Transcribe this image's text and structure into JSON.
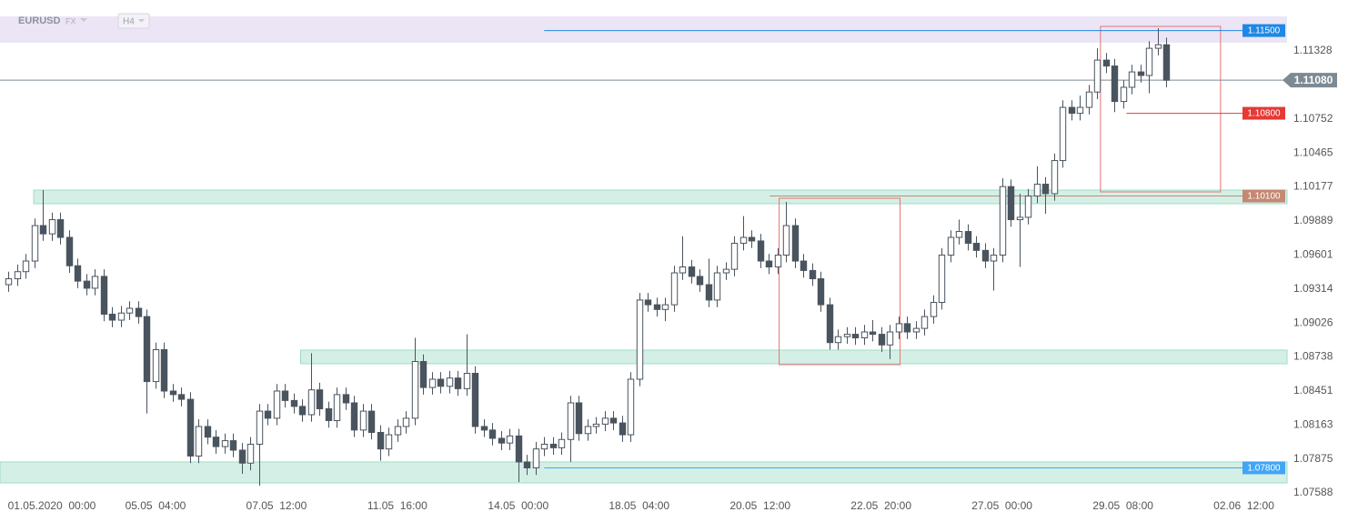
{
  "header": {
    "symbol": "EURUSD",
    "market": "FX",
    "timeframe": "H4"
  },
  "chart_data": {
    "type": "candlestick",
    "up_color": "#ffffff",
    "down_color": "#4a545e",
    "wick_color": "#4a545e",
    "open": [
      1.0935,
      1.094,
      1.0946,
      1.0955,
      1.0985,
      1.0978,
      1.099,
      1.0975,
      1.0951,
      1.0938,
      1.0932,
      1.0942,
      1.091,
      1.0905,
      1.0911,
      1.0915,
      1.0908,
      1.0853,
      1.088,
      1.0845,
      1.0842,
      1.0838,
      1.079,
      1.0815,
      1.0806,
      1.0798,
      1.0803,
      1.0795,
      1.0784,
      1.08,
      1.0828,
      1.0822,
      1.0845,
      1.0837,
      1.0832,
      1.0825,
      1.0846,
      1.083,
      1.082,
      1.0842,
      1.0835,
      1.0812,
      1.0828,
      1.081,
      1.0796,
      1.0808,
      1.0815,
      1.0822,
      1.087,
      1.0848,
      1.0855,
      1.0849,
      1.0856,
      1.0847,
      1.086,
      1.0815,
      1.0812,
      1.0805,
      1.0801,
      1.0807,
      1.0785,
      1.078,
      1.0796,
      1.08,
      1.0797,
      1.0804,
      1.0835,
      1.0809,
      1.0815,
      1.0817,
      1.0822,
      1.0818,
      1.0808,
      1.0855,
      1.0922,
      1.0918,
      1.0914,
      1.0918,
      1.0945,
      1.095,
      1.0942,
      1.0935,
      1.0922,
      1.0945,
      1.0948,
      1.097,
      1.0975,
      1.0972,
      1.0955,
      1.095,
      1.096,
      1.0985,
      1.0955,
      1.0947,
      1.094,
      1.0918,
      1.0886,
      1.0891,
      1.0893,
      1.089,
      1.0895,
      1.0893,
      1.0884,
      1.0895,
      1.0902,
      1.0895,
      1.0898,
      1.0908,
      1.092,
      1.096,
      1.0975,
      1.098,
      1.097,
      1.0964,
      1.0955,
      1.096,
      1.1018,
      1.099,
      1.0992,
      1.101,
      1.102,
      1.1012,
      1.104,
      1.1085,
      1.108,
      1.1085,
      1.1098,
      1.1125,
      1.112,
      1.109,
      1.1102,
      1.1115,
      1.1112,
      1.1135,
      1.1138
    ],
    "high": [
      1.0946,
      1.0952,
      1.0961,
      1.0991,
      1.1015,
      1.0996,
      1.0996,
      1.0981,
      1.0957,
      1.0944,
      1.0948,
      1.0948,
      1.0916,
      1.0917,
      1.0921,
      1.0921,
      1.0914,
      1.0886,
      1.0886,
      1.0851,
      1.0848,
      1.0844,
      1.0821,
      1.0821,
      1.0812,
      1.0809,
      1.0809,
      1.0801,
      1.0806,
      1.0834,
      1.0834,
      1.0851,
      1.0851,
      1.0843,
      1.0838,
      1.0877,
      1.0852,
      1.0836,
      1.0848,
      1.0848,
      1.0841,
      1.0834,
      1.0834,
      1.0816,
      1.0814,
      1.0821,
      1.0828,
      1.089,
      1.0876,
      1.0861,
      1.0861,
      1.0862,
      1.0862,
      1.0893,
      1.0866,
      1.0821,
      1.0818,
      1.0811,
      1.0813,
      1.0813,
      1.0791,
      1.0802,
      1.0806,
      1.0806,
      1.081,
      1.0841,
      1.0841,
      1.0821,
      1.0823,
      1.0828,
      1.0828,
      1.0824,
      1.0861,
      1.0928,
      1.0928,
      1.0924,
      1.0924,
      1.0951,
      1.0976,
      1.0956,
      1.0948,
      1.0957,
      1.0951,
      1.0954,
      1.0976,
      1.0993,
      1.0981,
      1.0978,
      1.0961,
      1.0966,
      1.1005,
      1.0991,
      1.0961,
      1.0953,
      1.0946,
      1.0924,
      1.0897,
      1.0899,
      1.0899,
      1.0901,
      1.0905,
      1.0899,
      1.0901,
      1.0908,
      1.0908,
      1.0904,
      1.0914,
      1.0926,
      1.0966,
      1.0981,
      1.099,
      1.0986,
      1.0976,
      1.097,
      1.0966,
      1.1025,
      1.1024,
      1.1012,
      1.1016,
      1.1035,
      1.1026,
      1.1046,
      1.1091,
      1.1091,
      1.1095,
      1.1104,
      1.1135,
      1.1131,
      1.1126,
      1.1108,
      1.1121,
      1.1121,
      1.1141,
      1.1152,
      1.1144
    ],
    "low": [
      1.0929,
      1.0934,
      1.094,
      1.0949,
      1.0972,
      1.0972,
      1.0969,
      1.0945,
      1.0932,
      1.0926,
      1.0926,
      1.0904,
      1.0899,
      1.0899,
      1.0905,
      1.0902,
      1.0826,
      1.0847,
      1.0839,
      1.0836,
      1.0832,
      1.0784,
      1.0784,
      1.08,
      1.0792,
      1.0792,
      1.0789,
      1.0775,
      1.0778,
      1.0765,
      1.0816,
      1.0816,
      1.0831,
      1.0826,
      1.0819,
      1.0819,
      1.0824,
      1.0814,
      1.0814,
      1.0829,
      1.0806,
      1.0806,
      1.0804,
      1.0786,
      1.079,
      1.0802,
      1.0809,
      1.0816,
      1.0842,
      1.0842,
      1.0843,
      1.0843,
      1.0841,
      1.0841,
      1.0809,
      1.0806,
      1.0799,
      1.0795,
      1.0795,
      1.0768,
      1.0774,
      1.0774,
      1.079,
      1.0791,
      1.0791,
      1.0785,
      1.0803,
      1.0803,
      1.0809,
      1.0811,
      1.0812,
      1.0802,
      1.0802,
      1.0849,
      1.0912,
      1.0908,
      1.0904,
      1.0912,
      1.0939,
      1.0936,
      1.0929,
      1.0916,
      1.0916,
      1.0939,
      1.0942,
      1.0964,
      1.0966,
      1.0949,
      1.0944,
      1.0944,
      1.0954,
      1.0949,
      1.0941,
      1.0934,
      1.0912,
      1.088,
      1.088,
      1.0885,
      1.0884,
      1.0884,
      1.0887,
      1.0878,
      1.0872,
      1.0889,
      1.0889,
      1.0889,
      1.0892,
      1.0902,
      1.0914,
      1.0954,
      1.0969,
      1.0964,
      1.0958,
      1.0949,
      1.093,
      1.0954,
      1.0984,
      1.095,
      1.0986,
      1.1004,
      1.0995,
      1.1006,
      1.1034,
      1.1074,
      1.1074,
      1.1079,
      1.1092,
      1.1114,
      1.1081,
      1.1084,
      1.1096,
      1.1106,
      1.1097,
      1.1129,
      1.1102
    ],
    "close": [
      1.094,
      1.0946,
      1.0955,
      1.0985,
      1.0978,
      1.099,
      1.0975,
      1.0951,
      1.0938,
      1.0932,
      1.0942,
      1.091,
      1.0905,
      1.0911,
      1.0915,
      1.0908,
      1.0853,
      1.088,
      1.0845,
      1.0842,
      1.0838,
      1.079,
      1.0815,
      1.0806,
      1.0798,
      1.0803,
      1.0795,
      1.0784,
      1.08,
      1.0828,
      1.0822,
      1.0845,
      1.0837,
      1.0832,
      1.0825,
      1.0846,
      1.083,
      1.082,
      1.0842,
      1.0835,
      1.0812,
      1.0828,
      1.081,
      1.0796,
      1.0808,
      1.0815,
      1.0822,
      1.087,
      1.0848,
      1.0855,
      1.0849,
      1.0856,
      1.0847,
      1.086,
      1.0815,
      1.0812,
      1.0805,
      1.0801,
      1.0807,
      1.0785,
      1.078,
      1.0796,
      1.08,
      1.0797,
      1.0804,
      1.0835,
      1.0809,
      1.0815,
      1.0817,
      1.0822,
      1.0818,
      1.0808,
      1.0855,
      1.0922,
      1.0918,
      1.0914,
      1.0918,
      1.0945,
      1.095,
      1.0942,
      1.0935,
      1.0922,
      1.0945,
      1.0948,
      1.097,
      1.0975,
      1.0972,
      1.0955,
      1.095,
      1.096,
      1.0985,
      1.0955,
      1.0947,
      1.094,
      1.0918,
      1.0886,
      1.0891,
      1.0893,
      1.089,
      1.0895,
      1.0893,
      1.0884,
      1.0895,
      1.0902,
      1.0895,
      1.0898,
      1.0908,
      1.092,
      1.096,
      1.0975,
      1.098,
      1.097,
      1.0964,
      1.0955,
      1.096,
      1.1018,
      1.099,
      1.0992,
      1.101,
      1.102,
      1.1012,
      1.104,
      1.1085,
      1.108,
      1.1085,
      1.1098,
      1.1125,
      1.112,
      1.109,
      1.1102,
      1.1115,
      1.1112,
      1.1135,
      1.1138,
      1.1108
    ],
    "xlim": [
      -1,
      148
    ],
    "xticks": [
      {
        "value": 5,
        "label": "01.05.2020  00:00"
      },
      {
        "value": 17,
        "label": "05.05  04:00"
      },
      {
        "value": 31,
        "label": "07.05  12:00"
      },
      {
        "value": 45,
        "label": "11.05  16:00"
      },
      {
        "value": 59,
        "label": "14.05  00:00"
      },
      {
        "value": 73,
        "label": "18.05  04:00"
      },
      {
        "value": 87,
        "label": "20.05  12:00"
      },
      {
        "value": 101,
        "label": "22.05  20:00"
      },
      {
        "value": 115,
        "label": "27.05  00:00"
      },
      {
        "value": 129,
        "label": "29.05  08:00"
      },
      {
        "value": 143,
        "label": "02.06  12:00"
      }
    ],
    "ylim": [
      1.07542,
      1.1162
    ],
    "yticks": [
      1.11328,
      1.10752,
      1.10465,
      1.10177,
      1.09889,
      1.09601,
      1.09314,
      1.09026,
      1.08738,
      1.08451,
      1.08163,
      1.07875,
      1.07588
    ],
    "grid": false,
    "bands": [
      {
        "low": 1.11397,
        "high": 1.1162,
        "start": -1,
        "color": "#e9e1f4"
      },
      {
        "low": 1.10035,
        "high": 1.1015,
        "start": 2.9,
        "color": "#cdeee2"
      },
      {
        "low": 1.08681,
        "high": 1.08796,
        "start": 33.8,
        "color": "#cdeee2"
      },
      {
        "low": 1.07673,
        "high": 1.0785,
        "start": -1,
        "color": "#cdeee2"
      }
    ],
    "boxes": [
      {
        "low": 1.08673,
        "high": 1.10081,
        "start": 89.2,
        "end": 103.2,
        "color": "#e57373"
      },
      {
        "low": 1.10135,
        "high": 1.11535,
        "start": 126.4,
        "end": 140.3,
        "color": "#e57373"
      }
    ],
    "levels": [
      {
        "value": 1.115,
        "label": "1.11500",
        "color": "#1e88e5",
        "start": 62
      },
      {
        "value": 1.108,
        "label": "1.10800",
        "color": "#e53935",
        "start": 129.4
      },
      {
        "value": 1.101,
        "label": "1.10100",
        "color": "#c48873",
        "start": 88.1
      },
      {
        "value": 1.078,
        "label": "1.07800",
        "color": "#42a5f5",
        "start": 62
      }
    ],
    "last_price": {
      "value": 1.1108,
      "label": "1.11080",
      "color": "#7d8a93"
    }
  }
}
